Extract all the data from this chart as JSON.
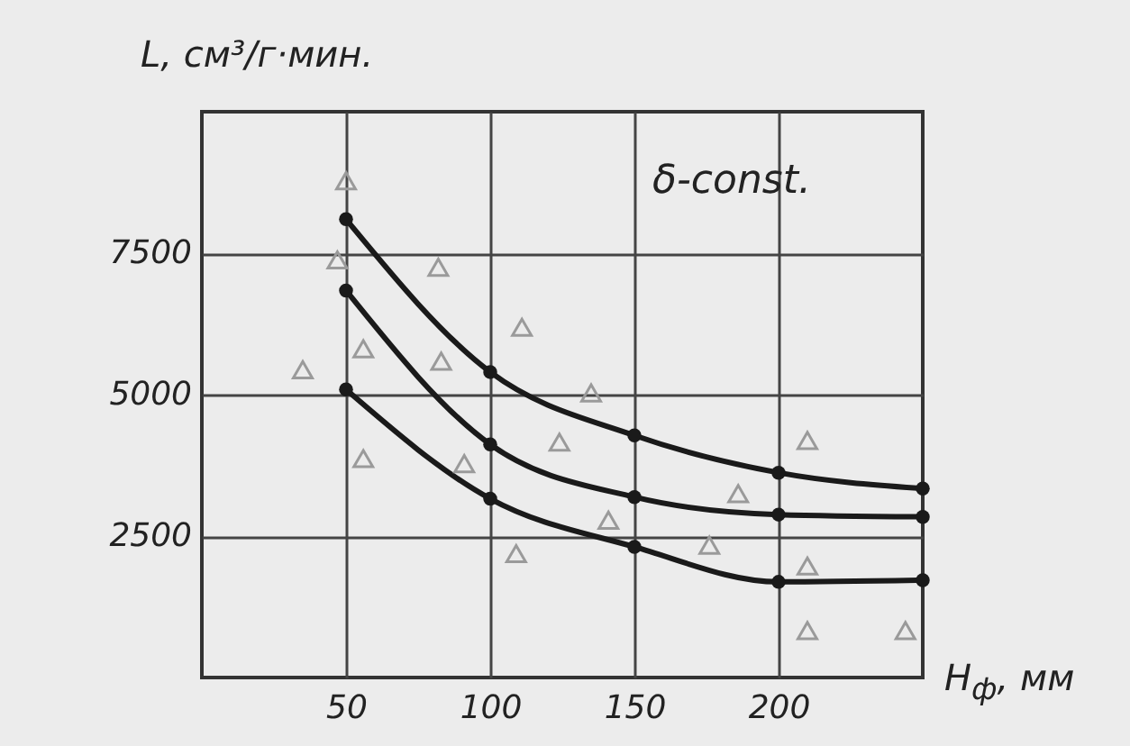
{
  "chart_data": {
    "type": "line",
    "ylabel": "L, см³/г·мин.",
    "xlabel": "H$_{ф}$, мм",
    "annotations": [
      "δ-const."
    ],
    "xlim": [
      0,
      250
    ],
    "xticks": [
      50,
      100,
      150,
      200
    ],
    "ylim": [
      0,
      10000
    ],
    "yticks": [
      2500,
      5000,
      7500
    ],
    "grid": true,
    "marker": "circle",
    "line_style": "solid",
    "series": [
      {
        "color": "#1a1a1a",
        "x": [
          50,
          100,
          150,
          200,
          250
        ],
        "values": [
          8100,
          5400,
          4280,
          3620,
          3340
        ]
      },
      {
        "color": "#1a1a1a",
        "x": [
          50,
          100,
          150,
          200,
          250
        ],
        "values": [
          6840,
          4120,
          3190,
          2880,
          2840
        ]
      },
      {
        "color": "#1a1a1a",
        "x": [
          50,
          100,
          150,
          200,
          250
        ],
        "values": [
          5090,
          3160,
          2310,
          1690,
          1720
        ]
      },
      {
        "type": "scatter",
        "marker": "triangle",
        "color": "#9a9a9a",
        "x": [
          50,
          47,
          82,
          35,
          56,
          83,
          111,
          56,
          91,
          124,
          135,
          109,
          141,
          186,
          176,
          210,
          210,
          210,
          244
        ],
        "values": [
          8780,
          7380,
          7250,
          5440,
          5810,
          5590,
          6190,
          3870,
          3780,
          4160,
          5030,
          2190,
          2780,
          3250,
          2340,
          4190,
          1970,
          830,
          830
        ]
      }
    ]
  }
}
